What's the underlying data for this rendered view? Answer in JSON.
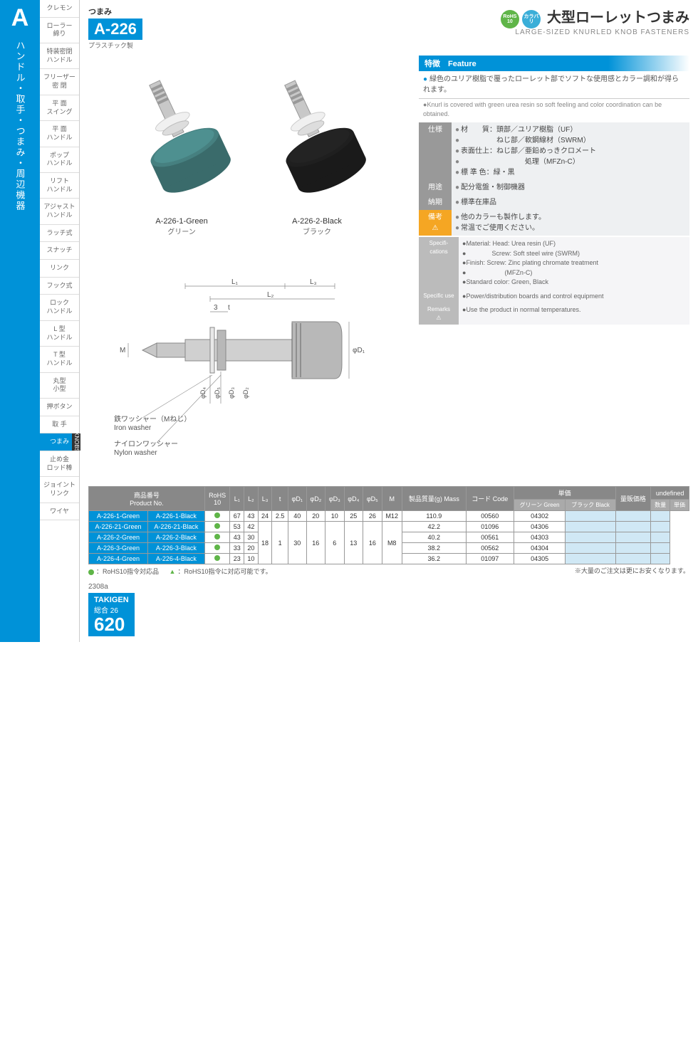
{
  "tab": {
    "letter": "A",
    "vert": "ハンドル・取手・つまみ・周辺機器"
  },
  "sidebar": [
    "クレモン",
    "ローラー\n締り",
    "特装密閉\nハンドル",
    "フリーザー\n密 閉",
    "平 面\nスイング",
    "平 面\nハンドル",
    "ポップ\nハンドル",
    "リフト\nハンドル",
    "アジャスト\nハンドル",
    "ラッチ式",
    "スナッチ",
    "リンク",
    "フック式",
    "ロック\nハンドル",
    "L 型\nハンドル",
    "T 型\nハンドル",
    "丸型\n小型",
    "押ボタン",
    "取 手",
    "つまみ",
    "止め金\nロッド棒",
    "ジョイント\nリンク",
    "ワイヤ"
  ],
  "sidebar_active": 19,
  "knobs_tag": "KNOBS",
  "header": {
    "small": "つまみ",
    "code": "A-226",
    "code_sub": "プラスチック製",
    "badge1": "RoHS\n10",
    "badge2": "カラバリ",
    "title_jp": "大型ローレットつまみ",
    "title_en": "LARGE-SIZED KNURLED KNOB FASTENERS"
  },
  "products": [
    {
      "code": "A-226-1-Green",
      "sub": "グリーン",
      "color": "#3a6b6b"
    },
    {
      "code": "A-226-2-Black",
      "sub": "ブラック",
      "color": "#1a1a1a"
    }
  ],
  "feature": {
    "hdr": "特徴　Feature",
    "jp": "緑色のユリア樹脂で覆ったローレット部でソフトな使用感とカラー調和が得られます。",
    "en": "Knurl is covered with green urea resin so soft feeling and color coordination can be obtained."
  },
  "spec_jp": [
    {
      "lbl": "仕様",
      "val": [
        "材　　質：頭部／ユリア樹脂（UF）",
        "　　　　　ねじ部／軟鋼線材（SWRM）",
        "表面仕上：ねじ部／亜鉛めっきクロメート",
        "　　　　　　　　　処理（MFZn-C）",
        "標 準 色：緑・黒"
      ]
    },
    {
      "lbl": "用途",
      "val": [
        "配分電盤・制御機器"
      ]
    },
    {
      "lbl": "納期",
      "val": [
        "標準在庫品"
      ]
    },
    {
      "lbl": "備考",
      "warn": true,
      "val": [
        "他のカラーも製作します。",
        "常温でご使用ください。"
      ]
    }
  ],
  "spec_en": [
    {
      "lbl": "Specifi-\ncations",
      "val": [
        "Material: Head: Urea resin (UF)",
        "　　　　Screw: Soft steel wire (SWRM)",
        "Finish: Screw: Zinc plating chromate treatment",
        "　　　　　　(MFZn-C)",
        "Standard color: Green, Black"
      ]
    },
    {
      "lbl": "Specific use",
      "val": [
        "Power/distribution boards and control equipment"
      ]
    },
    {
      "lbl": "Remarks",
      "warn": true,
      "val": [
        "Use the product in normal temperatures."
      ]
    }
  ],
  "diagram": {
    "labels": {
      "L1": "L₁",
      "L2": "L₂",
      "L3": "L₃",
      "t": "t",
      "num3": "3",
      "M": "M",
      "D1": "φD₁",
      "D2": "φD₂",
      "D3": "φD₃",
      "D4": "φD₄",
      "D5": "φD₅",
      "iron_jp": "鉄ワッシャー（Mねじ）",
      "iron_en": "Iron washer",
      "nylon_jp": "ナイロンワッシャー",
      "nylon_en": "Nylon washer"
    }
  },
  "table": {
    "hdr1": [
      "商品番号\nProduct No.",
      "RoHS\n10",
      "L₁",
      "L₂",
      "L₃",
      "t",
      "φD₁",
      "φD₂",
      "φD₃",
      "φD₄",
      "φD₅",
      "M",
      "製品質量(g)\nMass",
      "コード Code",
      "単価",
      "量販価格"
    ],
    "hdr2_code": [
      "グリーン Green",
      "ブラック Black"
    ],
    "hdr2_qty": [
      "数量",
      "単価"
    ],
    "rows": [
      {
        "p": [
          "A-226-1-Green",
          "A-226-1-Black"
        ],
        "v": [
          "67",
          "43",
          "24",
          "2.5",
          "40",
          "20",
          "10",
          "25",
          "26",
          "M12",
          "110.9",
          "00560",
          "04302"
        ]
      },
      {
        "p": [
          "A-226-21-Green",
          "A-226-21-Black"
        ],
        "v": [
          "53",
          "42",
          "",
          "",
          "",
          "",
          "",
          "",
          "",
          "",
          "42.2",
          "01096",
          "04306"
        ]
      },
      {
        "p": [
          "A-226-2-Green",
          "A-226-2-Black"
        ],
        "v": [
          "43",
          "30",
          "18",
          "1",
          "30",
          "16",
          "6",
          "13",
          "16",
          "M8",
          "40.2",
          "00561",
          "04303"
        ]
      },
      {
        "p": [
          "A-226-3-Green",
          "A-226-3-Black"
        ],
        "v": [
          "33",
          "20",
          "",
          "",
          "",
          "",
          "",
          "",
          "",
          "",
          "38.2",
          "00562",
          "04304"
        ]
      },
      {
        "p": [
          "A-226-4-Green",
          "A-226-4-Black"
        ],
        "v": [
          "23",
          "10",
          "",
          "",
          "",
          "",
          "",
          "",
          "",
          "",
          "36.2",
          "01097",
          "04305"
        ]
      }
    ]
  },
  "legend": {
    "l1": "：RoHS10指令対応品",
    "l2": "：RoHS10指令に対応可能です。",
    "note": "※大量のご注文は更にお安くなります。"
  },
  "footer": {
    "code": "2308a",
    "brand": "TAKIGEN",
    "series": "総合 26",
    "page": "620"
  }
}
